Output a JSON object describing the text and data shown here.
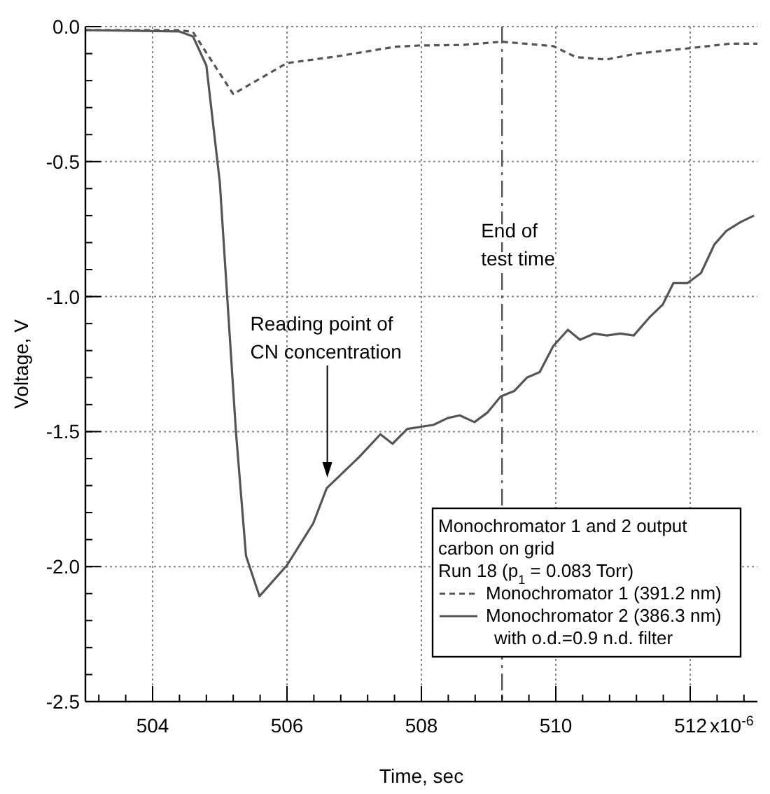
{
  "chart_data": {
    "type": "line",
    "xlabel": "Time, sec",
    "ylabel": "Voltage, V",
    "xlim": [
      503,
      513
    ],
    "ylim": [
      -2.5,
      0
    ],
    "xticks": [
      504,
      506,
      508,
      510,
      512
    ],
    "yticks": [
      {
        "value": 0,
        "label": "0.0"
      },
      -0.5,
      {
        "value": -1,
        "label": "-1.0"
      },
      -1.5,
      {
        "value": -2,
        "label": "-2.0"
      },
      -2.5
    ],
    "grid": true,
    "legend": "bottom right",
    "legend_title": "Monochromator 1 and 2 output\ncarbon on grid\nRun 18 (p$_{1}$ = 0.083 Torr)",
    "ref_lines": [
      {
        "axis": "x",
        "value": 509.2,
        "label": "End of\ntest time",
        "line_style": "dashed",
        "color": "#555555"
      }
    ],
    "annotations": [
      {
        "text": "Reading point of\nCN concentration",
        "x": 506.6,
        "y": -1.67
      },
      "x10$^{-6}$"
    ],
    "series": [
      {
        "name": "Monochromator 1 (391.2 nm)",
        "color": "#555555",
        "line_style": "dashed",
        "x": [
          503,
          504.4,
          504.6,
          505.2,
          506,
          506.75,
          507.6,
          507.95,
          508.6,
          509.2,
          509.96,
          510.3,
          510.75,
          511.2,
          511.95,
          512.6,
          513
        ],
        "values": [
          -0.013,
          -0.013,
          -0.02,
          -0.25,
          -0.135,
          -0.11,
          -0.075,
          -0.07,
          -0.068,
          -0.056,
          -0.072,
          -0.113,
          -0.122,
          -0.1,
          -0.081,
          -0.063,
          -0.063
        ]
      },
      {
        "name": "Monochromator 2 (386.3 nm)\nwith o.d.=0.9 n.d. filter",
        "color": "#555555",
        "line_style": "solid",
        "x": [
          503,
          504.4,
          504.6,
          504.8,
          505,
          505.24,
          505.39,
          505.59,
          506,
          506.39,
          506.59,
          507.07,
          507.39,
          507.57,
          507.79,
          508.18,
          508.39,
          508.57,
          508.79,
          508.98,
          509.18,
          509.38,
          509.57,
          509.76,
          509.96,
          510.18,
          510.36,
          510.57,
          510.76,
          510.96,
          511.16,
          511.39,
          511.59,
          511.75,
          511.96,
          512.16,
          512.36,
          512.54,
          512.75,
          512.95
        ],
        "values": [
          -0.013,
          -0.018,
          -0.036,
          -0.144,
          -0.576,
          -1.5,
          -1.96,
          -2.11,
          -1.995,
          -1.84,
          -1.71,
          -1.595,
          -1.51,
          -1.545,
          -1.49,
          -1.475,
          -1.45,
          -1.44,
          -1.465,
          -1.43,
          -1.37,
          -1.35,
          -1.3,
          -1.28,
          -1.184,
          -1.123,
          -1.16,
          -1.137,
          -1.144,
          -1.137,
          -1.144,
          -1.078,
          -1.03,
          -0.95,
          -0.95,
          -0.913,
          -0.807,
          -0.756,
          -0.724,
          -0.7
        ]
      }
    ]
  }
}
